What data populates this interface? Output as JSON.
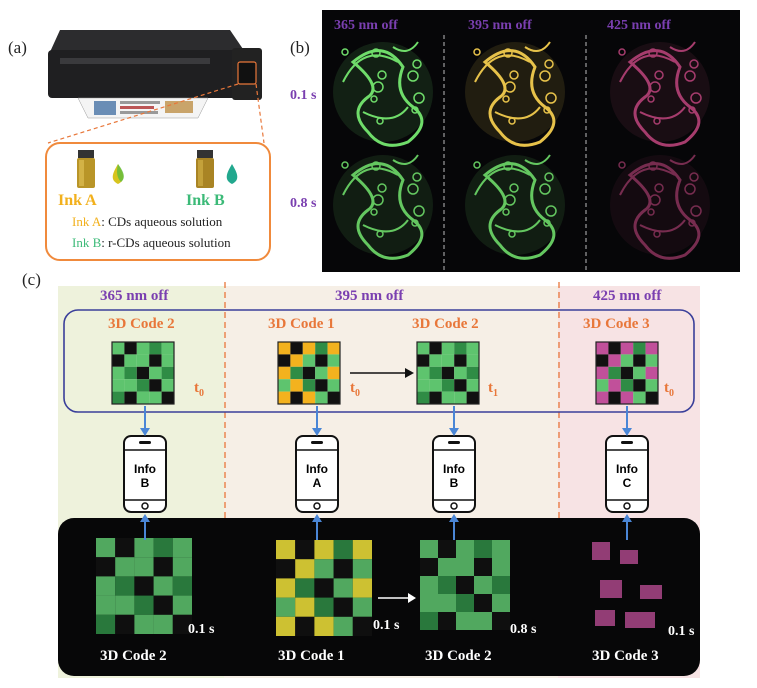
{
  "panel_a": {
    "letter": "(a)",
    "ink_a": "Ink A",
    "ink_b": "Ink B",
    "ink_a_prefix": "Ink A",
    "ink_a_desc": ": CDs aqueous solution",
    "ink_b_prefix": "Ink B",
    "ink_b_desc": ": r-CDs aqueous solution",
    "colors": {
      "border": "#f08a3c",
      "ink_a": "#f2b01c",
      "ink_b": "#3cba78"
    }
  },
  "panel_b": {
    "letter": "(b)",
    "columns": [
      "365 nm off",
      "395 nm off",
      "425 nm off"
    ],
    "rows": [
      "0.1 s",
      "0.8 s"
    ],
    "colors": {
      "label": "#7a3fb0",
      "green": "#6fdc6a",
      "yellow": "#e7c24a",
      "pink": "#c2467f"
    }
  },
  "panel_c": {
    "letter": "(c)",
    "sections": [
      "365 nm off",
      "395 nm off",
      "425 nm off"
    ],
    "codes_top": [
      "3D Code 2",
      "3D Code 1",
      "3D Code 2",
      "3D Code 3"
    ],
    "times_top": [
      "t",
      "t",
      "t",
      "t"
    ],
    "subs_top": [
      "0",
      "0",
      "1",
      "0"
    ],
    "phones": [
      {
        "line1": "Info",
        "line2": "B"
      },
      {
        "line1": "Info",
        "line2": "A"
      },
      {
        "line1": "Info",
        "line2": "B"
      },
      {
        "line1": "Info",
        "line2": "C"
      }
    ],
    "codes_bottom": [
      "3D Code 2",
      "3D Code 1",
      "3D Code 2",
      "3D Code 3"
    ],
    "times_bottom": [
      "0.1 s",
      "0.1 s",
      "0.8 s",
      "0.1 s"
    ],
    "colors": {
      "bg_left": "#eef2dc",
      "bg_mid": "#f6efe6",
      "bg_right": "#f7e3e4",
      "frame": "#3a3f9a",
      "divider": "#e8773a",
      "arrow": "#4a86d6"
    }
  }
}
